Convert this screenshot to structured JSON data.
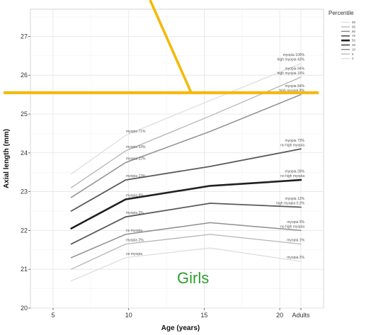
{
  "chart_data": {
    "type": "line",
    "x": [
      "5",
      "10",
      "15",
      "20",
      "Adults"
    ],
    "xlabel": "Age (years)",
    "ylabel": "Axial length (mm)",
    "ylim": [
      20,
      27.7
    ],
    "yticks": [
      "20",
      "21",
      "22",
      "23",
      "24",
      "25",
      "26",
      "27"
    ],
    "grid": true,
    "legend": {
      "title": "Percentile",
      "placement": "right",
      "entries": [
        "98",
        "95",
        "90",
        "75",
        "50",
        "25",
        "10",
        "5",
        "2"
      ]
    },
    "series": [
      {
        "name": "98",
        "points": [
          [
            6.2,
            23.45
          ],
          [
            9.8,
            24.45
          ],
          [
            15.4,
            25.35
          ],
          [
            "Adults",
            26.3
          ]
        ]
      },
      {
        "name": "95",
        "points": [
          [
            6.2,
            23.1
          ],
          [
            9.8,
            24.05
          ],
          [
            15.4,
            24.95
          ],
          [
            "Adults",
            25.95
          ]
        ]
      },
      {
        "name": "90",
        "points": [
          [
            6.2,
            22.85
          ],
          [
            9.8,
            23.75
          ],
          [
            15.4,
            24.55
          ],
          [
            "Adults",
            25.5
          ]
        ]
      },
      {
        "name": "75",
        "points": [
          [
            6.2,
            22.5
          ],
          [
            9.8,
            23.3
          ],
          [
            15.4,
            23.65
          ],
          [
            "Adults",
            24.1
          ]
        ]
      },
      {
        "name": "50",
        "points": [
          [
            6.2,
            22.05
          ],
          [
            9.8,
            22.8
          ],
          [
            15.4,
            23.15
          ],
          [
            "Adults",
            23.3
          ]
        ]
      },
      {
        "name": "25",
        "points": [
          [
            6.2,
            21.65
          ],
          [
            9.8,
            22.35
          ],
          [
            15.4,
            22.7
          ],
          [
            "Adults",
            22.6
          ]
        ]
      },
      {
        "name": "10",
        "points": [
          [
            6.2,
            21.3
          ],
          [
            9.8,
            21.9
          ],
          [
            15.4,
            22.2
          ],
          [
            "Adults",
            22.0
          ]
        ]
      },
      {
        "name": "5",
        "points": [
          [
            6.2,
            21.0
          ],
          [
            9.8,
            21.65
          ],
          [
            15.4,
            21.9
          ],
          [
            "Adults",
            21.65
          ]
        ]
      },
      {
        "name": "2",
        "points": [
          [
            6.2,
            20.7
          ],
          [
            9.8,
            21.3
          ],
          [
            15.4,
            21.55
          ],
          [
            "Adults",
            21.2
          ]
        ]
      }
    ],
    "left_labels": [
      "myopia 71%",
      "myopia 53%",
      "myopia 22%",
      "myopia 13%",
      "myopia 9%",
      "myopia 2%",
      "no myopia",
      "myopia 2%",
      "no myopia"
    ],
    "right_labels": [
      [
        "myopia 100%",
        "high myopia 43%"
      ],
      [
        "myopia 94%",
        "high myopia 16%"
      ],
      [
        "myopia 84%",
        "high myopia 8%"
      ],
      [
        "myopia 73%",
        "no high myopia"
      ],
      [
        "myopia 26%",
        "no high myopia"
      ],
      [
        "myopia 12%",
        "high myopia 0.2%"
      ],
      [
        "myopia 5%",
        "no high myopia"
      ],
      [
        "myopia 1%"
      ],
      [
        "myopia 2%"
      ]
    ],
    "annotations": {
      "overlay_text": "Girls",
      "highlight_line_y": 25.55,
      "highlight_color": "#f5b800"
    }
  }
}
